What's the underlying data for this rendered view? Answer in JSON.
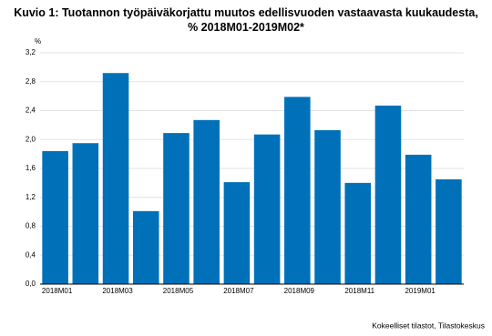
{
  "chart_data": {
    "type": "bar",
    "title": "Kuvio 1: Tuotannon työpäiväkorjattu muutos edellisvuoden vastaavasta kuukaudesta, % 2018M01-2019M02*",
    "y_label": "%",
    "source": "Kokeelliset tilastot, Tilastokeskus",
    "categories": [
      "2018M01",
      null,
      "2018M03",
      null,
      "2018M05",
      null,
      "2018M07",
      null,
      "2018M09",
      null,
      "2018M11",
      null,
      "2019M01",
      null
    ],
    "values": [
      1.84,
      1.95,
      2.92,
      1.01,
      2.09,
      2.27,
      1.41,
      2.07,
      2.59,
      2.13,
      1.4,
      2.47,
      1.79,
      1.45
    ],
    "color": "#0071b9",
    "ylim": [
      0,
      3.2
    ],
    "yticks": [
      {
        "value": 0,
        "label": "0,0"
      },
      {
        "value": 0.4,
        "label": "0,4"
      },
      {
        "value": 0.8,
        "label": "0,8"
      },
      {
        "value": 1.2,
        "label": "1,2"
      },
      {
        "value": 1.6,
        "label": "1,6"
      },
      {
        "value": 2.0,
        "label": "2,0"
      },
      {
        "value": 2.4,
        "label": "2,4"
      },
      {
        "value": 2.8,
        "label": "2,8"
      },
      {
        "value": 3.2,
        "label": "3,2"
      }
    ],
    "grid": true
  }
}
